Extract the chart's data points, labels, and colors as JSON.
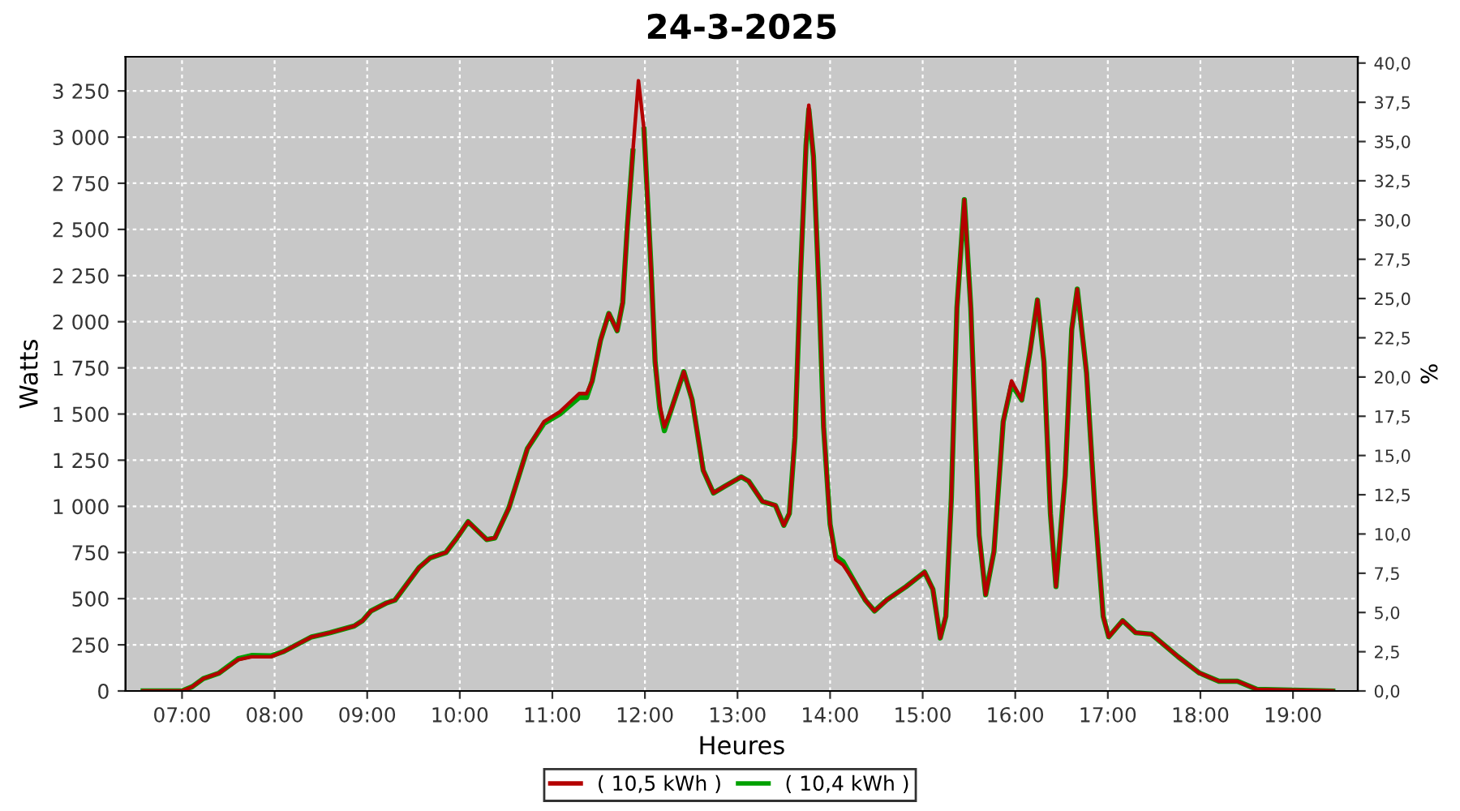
{
  "chart_data": {
    "type": "line",
    "title": "24-3-2025",
    "xlabel": "Heures",
    "ylabel": "Watts",
    "y2label": "%",
    "xlim": [
      6.39,
      19.7
    ],
    "xticks": [
      {
        "value": 7,
        "label": "07:00"
      },
      {
        "value": 8,
        "label": "08:00"
      },
      {
        "value": 9,
        "label": "09:00"
      },
      {
        "value": 10,
        "label": "10:00"
      },
      {
        "value": 11,
        "label": "11:00"
      },
      {
        "value": 12,
        "label": "12:00"
      },
      {
        "value": 13,
        "label": "13:00"
      },
      {
        "value": 14,
        "label": "14:00"
      },
      {
        "value": 15,
        "label": "15:00"
      },
      {
        "value": 16,
        "label": "16:00"
      },
      {
        "value": 17,
        "label": "17:00"
      },
      {
        "value": 18,
        "label": "18:00"
      },
      {
        "value": 19,
        "label": "19:00"
      }
    ],
    "ylim": [
      0,
      3435
    ],
    "yticks": [
      0,
      250,
      500,
      750,
      {
        "value": 1000,
        "label": "1 000"
      },
      {
        "value": 1250,
        "label": "1 250"
      },
      {
        "value": 1500,
        "label": "1 500"
      },
      {
        "value": 1750,
        "label": "1 750"
      },
      {
        "value": 2000,
        "label": "2 000"
      },
      {
        "value": 2250,
        "label": "2 250"
      },
      {
        "value": 2500,
        "label": "2 500"
      },
      {
        "value": 2750,
        "label": "2 750"
      },
      {
        "value": 3000,
        "label": "3 000"
      },
      {
        "value": 3250,
        "label": "3 250"
      }
    ],
    "y2lim": [
      0,
      40.4
    ],
    "y2ticks": [
      {
        "value": 0,
        "label": "0,0"
      },
      {
        "value": 2.5,
        "label": "2,5"
      },
      {
        "value": 5,
        "label": "5,0"
      },
      {
        "value": 7.5,
        "label": "7,5"
      },
      {
        "value": 10,
        "label": "10,0"
      },
      {
        "value": 12.5,
        "label": "12,5"
      },
      {
        "value": 15,
        "label": "15,0"
      },
      {
        "value": 17.5,
        "label": "17,5"
      },
      {
        "value": 20,
        "label": "20,0"
      },
      {
        "value": 22.5,
        "label": "22,5"
      },
      {
        "value": 25,
        "label": "25,0"
      },
      {
        "value": 27.5,
        "label": "27,5"
      },
      {
        "value": 30,
        "label": "30,0"
      },
      {
        "value": 32.5,
        "label": "32,5"
      },
      {
        "value": 35,
        "label": "35,0"
      },
      {
        "value": 37.5,
        "label": "37,5"
      },
      {
        "value": 40,
        "label": "40,0"
      }
    ],
    "grid": true,
    "legend": "bottom",
    "marker": "none",
    "line_style": "solid",
    "x": [
      6.58,
      7.0,
      7.11,
      7.23,
      7.4,
      7.61,
      7.75,
      7.96,
      8.1,
      8.4,
      8.6,
      8.86,
      8.95,
      9.04,
      9.21,
      9.3,
      9.56,
      9.68,
      9.85,
      9.97,
      10.09,
      10.29,
      10.38,
      10.53,
      10.73,
      10.91,
      11.08,
      11.29,
      11.37,
      11.43,
      11.52,
      11.61,
      11.7,
      11.76,
      11.81,
      11.87,
      11.93,
      11.99,
      12.07,
      12.11,
      12.16,
      12.21,
      12.28,
      12.42,
      12.51,
      12.63,
      12.74,
      12.86,
      13.04,
      13.12,
      13.27,
      13.41,
      13.5,
      13.56,
      13.62,
      13.68,
      13.74,
      13.77,
      13.82,
      13.88,
      13.93,
      14.0,
      14.06,
      14.14,
      14.26,
      14.38,
      14.48,
      14.61,
      14.82,
      15.02,
      15.11,
      15.19,
      15.25,
      15.31,
      15.37,
      15.45,
      15.52,
      15.61,
      15.68,
      15.77,
      15.87,
      15.96,
      16.07,
      16.16,
      16.24,
      16.31,
      16.38,
      16.44,
      16.54,
      16.61,
      16.67,
      16.77,
      16.86,
      16.95,
      17.01,
      17.16,
      17.3,
      17.47,
      17.76,
      17.99,
      18.2,
      18.4,
      18.61,
      19.43
    ],
    "series": [
      {
        "name": "( 10,5 kWh )",
        "color": "#b40000",
        "values": [
          0,
          0,
          23,
          67,
          97,
          170,
          185,
          185,
          214,
          293,
          316,
          352,
          381,
          433,
          477,
          492,
          668,
          721,
          750,
          829,
          917,
          820,
          829,
          991,
          1312,
          1459,
          1512,
          1611,
          1611,
          1679,
          1899,
          2045,
          1951,
          2104,
          2514,
          2924,
          3305,
          3041,
          2250,
          1782,
          1547,
          1430,
          1518,
          1729,
          1576,
          1195,
          1072,
          1108,
          1160,
          1137,
          1026,
          1005,
          897,
          961,
          1371,
          2250,
          2953,
          3173,
          2895,
          2162,
          1430,
          903,
          712,
          683,
          595,
          492,
          433,
          492,
          565,
          644,
          551,
          287,
          404,
          1049,
          2074,
          2661,
          2074,
          844,
          521,
          756,
          1459,
          1679,
          1576,
          1840,
          2118,
          1782,
          961,
          565,
          1166,
          1958,
          2177,
          1723,
          991,
          404,
          293,
          381,
          316,
          308,
          185,
          97,
          53,
          53,
          9,
          0
        ]
      },
      {
        "name": "( 10,4 kWh )",
        "color": "#00a000",
        "values": [
          0,
          0,
          23,
          67,
          97,
          175,
          192,
          190,
          214,
          293,
          316,
          352,
          381,
          433,
          477,
          492,
          668,
          721,
          750,
          829,
          917,
          820,
          829,
          991,
          1312,
          1450,
          1500,
          1590,
          1590,
          1679,
          1899,
          2045,
          1951,
          2104,
          2514,
          2924,
          null,
          3041,
          2250,
          1782,
          1530,
          1410,
          1518,
          1729,
          1576,
          1195,
          1072,
          1108,
          1160,
          1137,
          1026,
          1005,
          897,
          961,
          1371,
          2250,
          2953,
          3150,
          2895,
          2162,
          1430,
          903,
          730,
          700,
          595,
          492,
          433,
          492,
          565,
          644,
          551,
          287,
          404,
          1049,
          2074,
          2661,
          2074,
          844,
          521,
          756,
          1459,
          1660,
          1576,
          1840,
          2118,
          1782,
          961,
          565,
          1166,
          1958,
          2177,
          1723,
          991,
          404,
          293,
          381,
          316,
          308,
          185,
          97,
          53,
          53,
          9,
          0
        ]
      }
    ]
  }
}
